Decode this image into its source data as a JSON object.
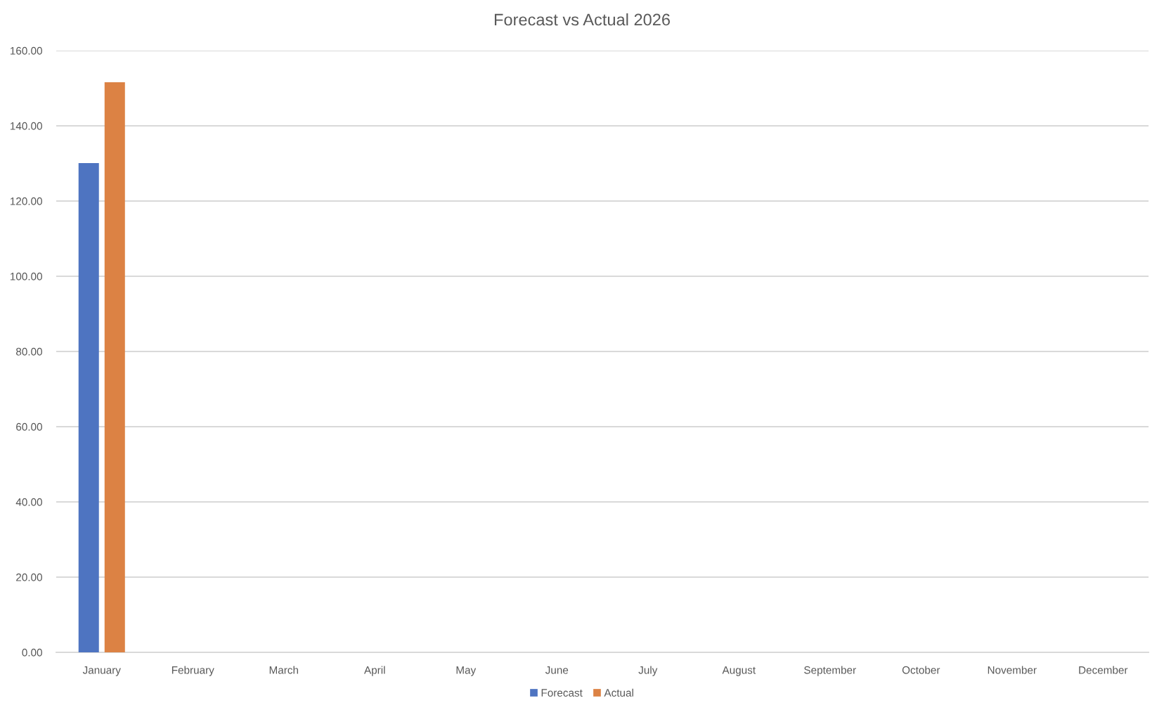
{
  "chart_data": {
    "type": "bar",
    "title": "Forecast vs Actual 2026",
    "categories": [
      "January",
      "February",
      "March",
      "April",
      "May",
      "June",
      "July",
      "August",
      "September",
      "October",
      "November",
      "December"
    ],
    "series": [
      {
        "name": "Forecast",
        "color": "#4e74c1",
        "values": [
          130.1,
          null,
          null,
          null,
          null,
          null,
          null,
          null,
          null,
          null,
          null,
          null
        ]
      },
      {
        "name": "Actual",
        "color": "#dc8244",
        "values": [
          151.6,
          null,
          null,
          null,
          null,
          null,
          null,
          null,
          null,
          null,
          null,
          null
        ]
      }
    ],
    "ylim": [
      0,
      160
    ],
    "yticks": [
      {
        "value": 0,
        "label": "0.00"
      },
      {
        "value": 20,
        "label": "20.00"
      },
      {
        "value": 40,
        "label": "40.00"
      },
      {
        "value": 60,
        "label": "60.00"
      },
      {
        "value": 80,
        "label": "80.00"
      },
      {
        "value": 100,
        "label": "100.00"
      },
      {
        "value": 120,
        "label": "120.00"
      },
      {
        "value": 140,
        "label": "140.00"
      },
      {
        "value": 160,
        "label": "160.00"
      }
    ],
    "grid": "y",
    "legend": "bottom"
  }
}
